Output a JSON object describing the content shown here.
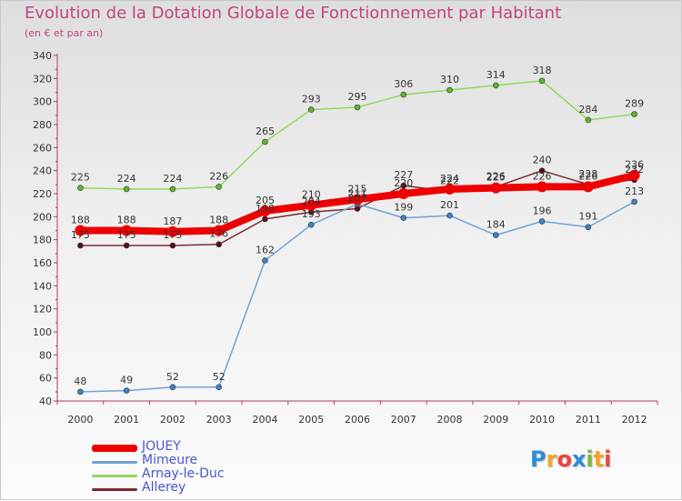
{
  "header": {
    "title": "Evolution de la Dotation Globale de Fonctionnement par Habitant",
    "subtitle": "(en € et par an)"
  },
  "logo": {
    "text": "Proxiti",
    "letters": [
      {
        "ch": "P",
        "color": "#2a8fd6"
      },
      {
        "ch": "r",
        "color": "#f5a623"
      },
      {
        "ch": "o",
        "color": "#e8473a"
      },
      {
        "ch": "x",
        "color": "#2a8fd6"
      },
      {
        "ch": "i",
        "color": "#7ab83c"
      },
      {
        "ch": "t",
        "color": "#f5a623"
      },
      {
        "ch": "i",
        "color": "#e8473a"
      }
    ]
  },
  "chart_data": {
    "type": "line",
    "title": "Evolution de la Dotation Globale de Fonctionnement par Habitant",
    "subtitle": "(en € et par an)",
    "xlabel": "",
    "ylabel": "",
    "ylim": [
      40,
      340
    ],
    "yticks": [
      40,
      60,
      80,
      100,
      120,
      140,
      160,
      180,
      200,
      220,
      240,
      260,
      280,
      300,
      320,
      340
    ],
    "categories": [
      "2000",
      "2001",
      "2002",
      "2003",
      "2004",
      "2005",
      "2006",
      "2007",
      "2008",
      "2009",
      "2010",
      "2011",
      "2012"
    ],
    "grid": false,
    "legend_position": "bottom-left",
    "series": [
      {
        "name": "Allerey",
        "color": "#7a2a32",
        "marker": "#5a0d15",
        "style": "thin",
        "values": [
          175,
          175,
          175,
          176,
          198,
          204,
          207,
          227,
          222,
          226,
          240,
          228,
          232
        ],
        "labels": [
          "175",
          "175",
          "175",
          "176",
          "198",
          "204",
          "207",
          "227",
          "222",
          "226",
          "240",
          "228",
          "232"
        ]
      },
      {
        "name": "Arnay-le-Duc",
        "color": "#90d860",
        "marker": "#5db52c",
        "style": "thin",
        "values": [
          225,
          224,
          224,
          226,
          265,
          293,
          295,
          306,
          310,
          314,
          318,
          284,
          289
        ],
        "labels": [
          "225",
          "224",
          "224",
          "226",
          "265",
          "293",
          "295",
          "306",
          "310",
          "314",
          "318",
          "284",
          "289"
        ]
      },
      {
        "name": "Mimeure",
        "color": "#6fa2d6",
        "marker": "#3b84c9",
        "style": "thin",
        "values": [
          48,
          49,
          52,
          52,
          162,
          193,
          211,
          199,
          201,
          184,
          196,
          191,
          213
        ],
        "labels": [
          "48",
          "49",
          "52",
          "52",
          "162",
          "193",
          "211",
          "199",
          "201",
          "184",
          "196",
          "191",
          "213"
        ]
      },
      {
        "name": "JOUEY",
        "color": "#ee0000",
        "marker": "#ee0000",
        "style": "thick",
        "values": [
          188,
          188,
          187,
          188,
          205,
          210,
          215,
          220,
          224,
          225,
          226,
          226,
          236
        ],
        "labels": [
          "188",
          "188",
          "187",
          "188",
          "205",
          "210",
          "215",
          "220",
          "224",
          "225",
          "226",
          "226",
          "236"
        ]
      }
    ]
  },
  "legend": {
    "items": [
      {
        "label": "JOUEY",
        "color": "#ee0000",
        "thick": true
      },
      {
        "label": "Mimeure",
        "color": "#6fa2d6",
        "thick": false
      },
      {
        "label": "Arnay-le-Duc",
        "color": "#90d860",
        "thick": false
      },
      {
        "label": "Allerey",
        "color": "#7a2a32",
        "thick": false
      }
    ]
  }
}
